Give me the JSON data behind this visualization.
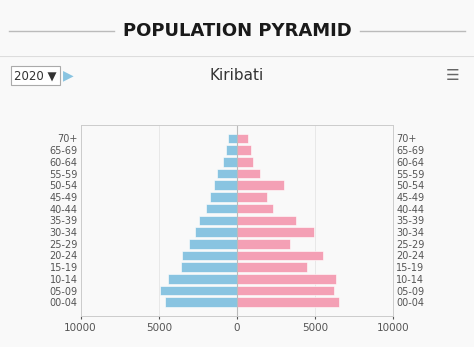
{
  "title": "POPULATION PYRAMID",
  "subtitle": "Kiribati",
  "year_label": "2020 ▼",
  "age_groups": [
    "70+",
    "65-69",
    "60-64",
    "55-59",
    "50-54",
    "45-49",
    "40-44",
    "35-39",
    "30-34",
    "25-29",
    "20-24",
    "15-19",
    "10-14",
    "05-09",
    "00-04"
  ],
  "male": [
    600,
    700,
    900,
    1300,
    1500,
    1700,
    2000,
    2400,
    2700,
    3100,
    3500,
    3600,
    4400,
    4900,
    4600
  ],
  "female": [
    700,
    900,
    1000,
    1500,
    3000,
    1900,
    2300,
    3800,
    4900,
    3400,
    5500,
    4500,
    6300,
    6200,
    6500
  ],
  "male_color": "#89C4E1",
  "female_color": "#F4A0B5",
  "bg_color": "#f9f9f9",
  "plot_bg_color": "#f9f9f9",
  "xlim": 10000,
  "xticks": [
    -10000,
    -5000,
    0,
    5000,
    10000
  ],
  "xtick_labels": [
    "10000",
    "5000",
    "0",
    "5000",
    "10000"
  ],
  "bar_height": 0.82,
  "title_fontsize": 13,
  "subtitle_fontsize": 11,
  "axis_fontsize": 7.5,
  "label_fontsize": 7,
  "spine_color": "#cccccc",
  "text_color": "#555555"
}
